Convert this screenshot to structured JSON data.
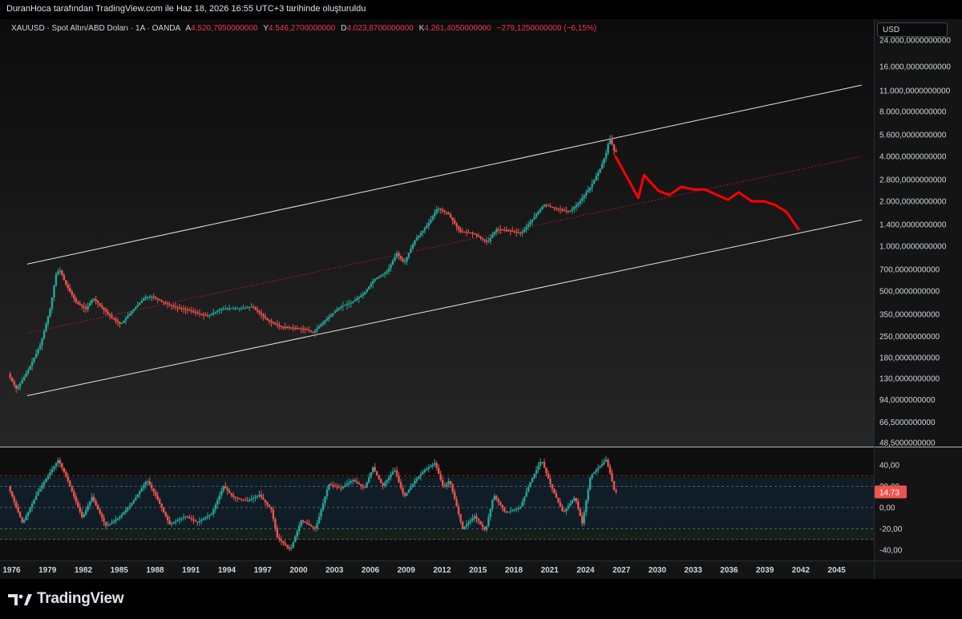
{
  "header": {
    "attribution": "DuranHoca tarafından TradingView.com ile Haz 18, 2026 16:55 UTC+3 tarihinde oluşturuldu"
  },
  "legend": {
    "symbol": "XAUUSD · Spot Altın/ABD Doları · 1A · OANDA",
    "open_label": "A",
    "open_value": "4.520,7950000000",
    "high_label": "Y",
    "high_value": "4.546,2700000000",
    "low_label": "D",
    "low_value": "4.023,8700000000",
    "close_label": "K",
    "close_value": "4.261,4050000000",
    "change": "−279,1250000000 (−6,15%)"
  },
  "currency_button": "USD",
  "oscillator": {
    "last_value_label": "14,73"
  },
  "footer": {
    "brand": "TradingView"
  },
  "colors": {
    "background": "#141414",
    "up": "#26a69a",
    "down": "#ef5350",
    "projection": "#ff0000",
    "channel": "#e0e0e0"
  },
  "chart_data": [
    {
      "type": "line",
      "title": "",
      "scale": "log",
      "y_ticks": [
        "24.000,0000000000",
        "16.000,0000000000",
        "11.000,0000000000",
        "8.000,0000000000",
        "5.600,0000000000",
        "4.000,0000000000",
        "2.800,0000000000",
        "2.000,0000000000",
        "1.400,0000000000",
        "1.000,0000000000",
        "700,0000000000",
        "500,0000000000",
        "350,0000000000",
        "250,0000000000",
        "180,0000000000",
        "130,0000000000",
        "94,0000000000",
        "66,5000000000",
        "48,5000000000"
      ],
      "y_tick_values": [
        24000,
        16000,
        11000,
        8000,
        5600,
        4000,
        2800,
        2000,
        1400,
        1000,
        700,
        500,
        350,
        250,
        180,
        130,
        94,
        66.5,
        48.5
      ],
      "x_ticks": [
        "1976",
        "1979",
        "1982",
        "1985",
        "1988",
        "1991",
        "1994",
        "1997",
        "2000",
        "2003",
        "2006",
        "2009",
        "2012",
        "2015",
        "2018",
        "2021",
        "2024",
        "2027",
        "2030",
        "2033",
        "2036",
        "2039",
        "2042",
        "2045"
      ],
      "x_range": [
        1975.7,
        2047.1
      ],
      "series": [
        {
          "x": [
            1975.8,
            1976.5,
            1977.5,
            1978.5,
            1979.3,
            1979.8,
            1980.1,
            1980.6,
            1981.5,
            1982.3,
            1982.9,
            1983.5,
            1984.5,
            1985.2,
            1986.3,
            1987.3,
            1987.9,
            1988.8,
            1989.8,
            1990.5,
            1991.5,
            1992.5,
            1993.5,
            1994.5,
            1995.5,
            1996.2,
            1997.5,
            1998.5,
            1999.5,
            2000.5,
            2001.3,
            2002.5,
            2003.5,
            2004.5,
            2005.5,
            2006.4,
            2007.5,
            2008.3,
            2008.9,
            2009.8,
            2010.9,
            2011.7,
            2012.6,
            2013.6,
            2014.6,
            2015.9,
            2016.6,
            2017.5,
            2018.7,
            2019.6,
            2020.6,
            2021.5,
            2022.7,
            2023.5,
            2024.5,
            2025.3,
            2025.8,
            2026.1,
            2026.5
          ],
          "y": [
            140,
            110,
            150,
            220,
            380,
            650,
            700,
            560,
            420,
            380,
            450,
            400,
            330,
            300,
            380,
            460,
            460,
            420,
            390,
            380,
            360,
            340,
            380,
            385,
            385,
            395,
            320,
            290,
            285,
            280,
            265,
            330,
            390,
            420,
            480,
            600,
            680,
            900,
            770,
            1100,
            1400,
            1800,
            1650,
            1250,
            1230,
            1060,
            1300,
            1280,
            1220,
            1500,
            1900,
            1800,
            1700,
            1950,
            2500,
            3300,
            4200,
            5400,
            4261
          ]
        },
        {
          "name": "",
          "x": [
            2026.5,
            2027.8,
            2028.4,
            2028.9,
            2029.4,
            2030.1,
            2031.0,
            2032.0,
            2033.0,
            2034.0,
            2035.0,
            2035.9,
            2036.8,
            2037.9,
            2038.9,
            2039.8,
            2040.8,
            2041.8
          ],
          "y": [
            4000,
            2600,
            2100,
            3000,
            2700,
            2350,
            2200,
            2500,
            2400,
            2400,
            2200,
            2050,
            2300,
            2000,
            2000,
            1900,
            1700,
            1300
          ]
        }
      ]
    },
    {
      "type": "line",
      "title": "",
      "y_ticks": [
        "40,00",
        "20,00",
        "0,00",
        "-20,00",
        "-40,00"
      ],
      "y_tick_values": [
        40,
        20,
        0,
        -20,
        -40
      ],
      "levels": [
        30,
        20,
        0,
        -20,
        -30
      ],
      "series": [
        {
          "x": [
            1975.8,
            1977.0,
            1978.3,
            1979.4,
            1980.0,
            1980.8,
            1982.0,
            1982.8,
            1984.0,
            1985.2,
            1986.2,
            1987.4,
            1988.2,
            1989.3,
            1990.6,
            1991.6,
            1992.8,
            1993.8,
            1994.6,
            1995.8,
            1996.8,
            1997.8,
            1998.3,
            1999.4,
            2000.3,
            2001.5,
            2002.6,
            2003.6,
            2004.6,
            2005.6,
            2006.3,
            2007.1,
            2008.1,
            2008.9,
            2009.8,
            2010.6,
            2011.5,
            2012.2,
            2012.7,
            2013.8,
            2014.8,
            2015.7,
            2016.4,
            2017.4,
            2018.6,
            2019.5,
            2020.4,
            2021.2,
            2022.2,
            2023.2,
            2023.8,
            2024.5,
            2025.2,
            2025.8,
            2026.2,
            2026.5
          ],
          "y": [
            20,
            -15,
            15,
            35,
            45,
            25,
            -10,
            10,
            -18,
            -8,
            5,
            26,
            10,
            -16,
            -8,
            -14,
            -6,
            20,
            10,
            6,
            12,
            -2,
            -28,
            -40,
            -12,
            -20,
            22,
            18,
            26,
            18,
            38,
            20,
            36,
            10,
            25,
            35,
            42,
            18,
            26,
            -20,
            -8,
            -22,
            12,
            -5,
            0,
            25,
            45,
            20,
            -5,
            10,
            -15,
            30,
            38,
            45,
            30,
            14.73
          ]
        }
      ]
    }
  ]
}
